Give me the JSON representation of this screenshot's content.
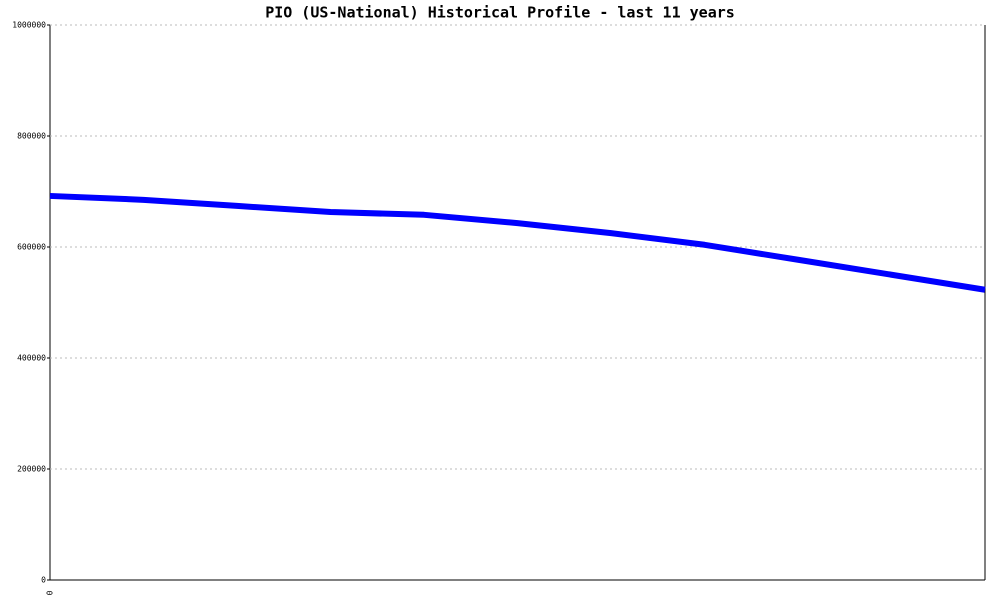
{
  "chart_data": {
    "type": "line",
    "title": "PIO (US-National) Historical Profile - last 11 years",
    "categories": [
      "0",
      null,
      null,
      null,
      null,
      null,
      null,
      null,
      null,
      null,
      null
    ],
    "series": [
      {
        "name": "PIO",
        "color": "#0000ff",
        "values": [
          692000,
          685000,
          674000,
          663000,
          658000,
          643000,
          625000,
          604000,
          577000,
          550000,
          523000
        ]
      }
    ],
    "ylim": [
      0,
      1000000
    ],
    "yticks": [
      0,
      200000,
      400000,
      600000,
      800000,
      1000000
    ],
    "grid": true
  }
}
